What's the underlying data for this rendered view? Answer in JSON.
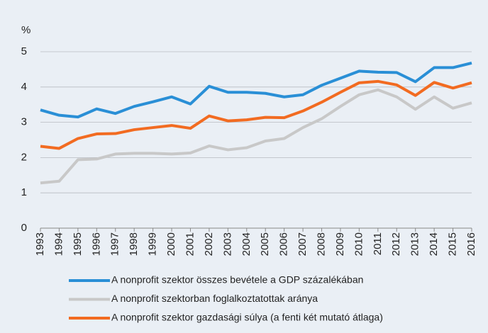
{
  "chart_data": {
    "type": "line",
    "y_label": "%",
    "categories": [
      "1993",
      "1994",
      "1995",
      "1996",
      "1997",
      "1998",
      "1999",
      "2000",
      "2001",
      "2002",
      "2003",
      "2004",
      "2005",
      "2006",
      "2007",
      "2008",
      "2009",
      "2010",
      "2011",
      "2012",
      "2013",
      "2014",
      "2015",
      "2016"
    ],
    "series": [
      {
        "name": "A nonprofit szektor összes bevétele a GDP százalékában",
        "color": "#2a8fd6",
        "values": [
          3.35,
          3.2,
          3.15,
          3.38,
          3.25,
          3.45,
          3.58,
          3.72,
          3.52,
          4.02,
          3.85,
          3.85,
          3.82,
          3.72,
          3.78,
          4.05,
          4.25,
          4.45,
          4.42,
          4.41,
          4.15,
          4.55,
          4.55,
          4.68
        ]
      },
      {
        "name": "A nonprofit szektorban foglalkoztatottak aránya",
        "color": "#c8c8c8",
        "values": [
          1.28,
          1.33,
          1.94,
          1.96,
          2.1,
          2.12,
          2.12,
          2.1,
          2.13,
          2.33,
          2.22,
          2.28,
          2.47,
          2.54,
          2.85,
          3.1,
          3.45,
          3.78,
          3.92,
          3.72,
          3.37,
          3.72,
          3.4,
          3.55
        ]
      },
      {
        "name": "A nonprofit szektor gazdasági súlya (a fenti két mutató átlaga)",
        "color": "#f26b21",
        "values": [
          2.32,
          2.26,
          2.54,
          2.67,
          2.68,
          2.79,
          2.85,
          2.91,
          2.83,
          3.18,
          3.04,
          3.07,
          3.14,
          3.13,
          3.32,
          3.57,
          3.85,
          4.12,
          4.16,
          4.06,
          3.76,
          4.13,
          3.97,
          4.12
        ]
      }
    ],
    "ylim": [
      0,
      5
    ],
    "yticks": [
      0,
      1,
      2,
      3,
      4,
      5
    ],
    "grid": true
  }
}
